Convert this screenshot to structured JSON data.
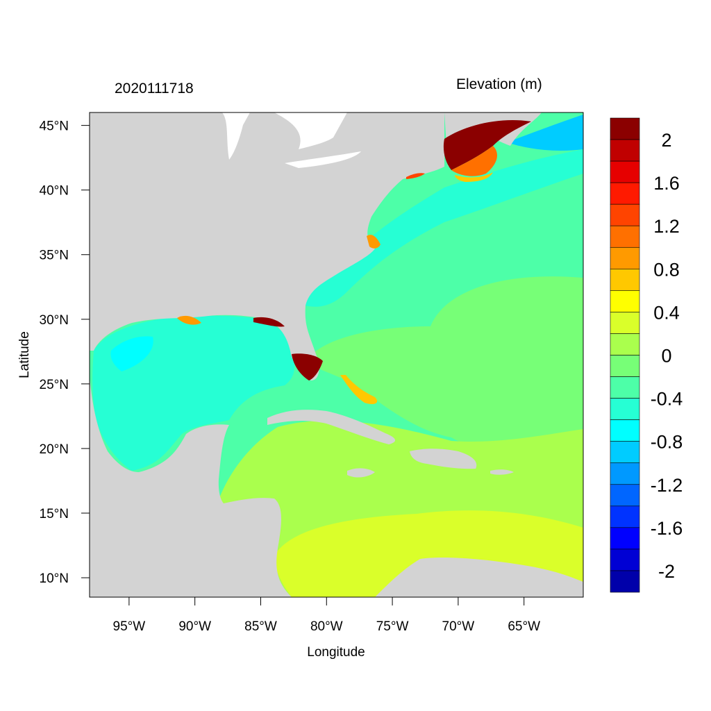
{
  "map": {
    "date_label": "2020111718",
    "variable_title": "Elevation (m)",
    "xlabel": "Longitude",
    "ylabel": "Latitude",
    "lon_range": [
      -98,
      -60.5
    ],
    "lat_range": [
      8.5,
      46
    ],
    "lon_ticks": [
      -95,
      -90,
      -85,
      -80,
      -75,
      -70,
      -65
    ],
    "lon_tick_labels": [
      "95°W",
      "90°W",
      "85°W",
      "80°W",
      "75°W",
      "70°W",
      "65°W"
    ],
    "lat_ticks": [
      10,
      15,
      20,
      25,
      30,
      35,
      40,
      45
    ],
    "lat_tick_labels": [
      "10°N",
      "15°N",
      "20°N",
      "25°N",
      "30°N",
      "35°N",
      "40°N",
      "45°N"
    ],
    "land_color": "#d3d3d3",
    "ocean_color": "#4dffa8"
  },
  "colorbar": {
    "labels": [
      "2",
      "1.6",
      "1.2",
      "0.8",
      "0.4",
      "0",
      "-0.4",
      "-0.8",
      "-1.2",
      "-1.6",
      "-2"
    ],
    "colors_top_to_bottom": [
      "#8b0000",
      "#c00000",
      "#e60000",
      "#ff1a00",
      "#ff4400",
      "#ff7000",
      "#ff9a00",
      "#ffc800",
      "#ffff00",
      "#daff2a",
      "#aaff4d",
      "#77ff77",
      "#4dffa8",
      "#26ffd4",
      "#00ffff",
      "#00ccff",
      "#0099ff",
      "#0066ff",
      "#0033ff",
      "#0000ff",
      "#0000d4",
      "#0000aa"
    ]
  }
}
